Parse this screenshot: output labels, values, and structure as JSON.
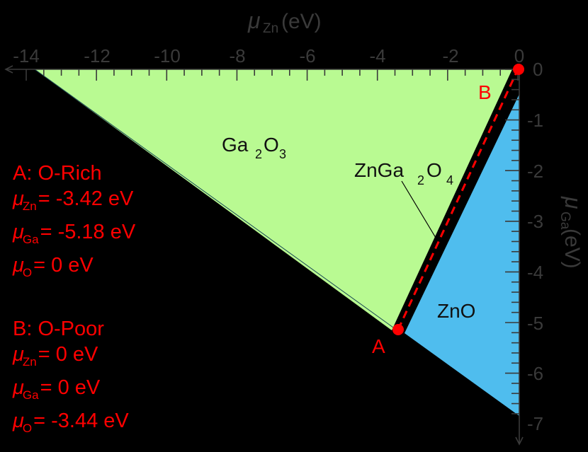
{
  "chart_data": {
    "type": "area",
    "title": "",
    "xlabel": "μ_Zn (eV)",
    "ylabel": "μ_Ga (eV)",
    "x_axis_position": "top",
    "y_axis_position": "right",
    "xlim": [
      -14,
      0
    ],
    "ylim": [
      -7,
      0
    ],
    "x_ticks": [
      -14,
      -12,
      -10,
      -8,
      -6,
      -4,
      -2,
      0
    ],
    "y_ticks": [
      0,
      -1,
      -2,
      -3,
      -4,
      -5,
      -6,
      -7
    ],
    "grid": false,
    "regions": [
      {
        "name": "Ga2O3",
        "color": "#b9fa92",
        "polygon": [
          [
            0,
            0
          ],
          [
            -13.9,
            0
          ],
          [
            -3.42,
            -5.18
          ],
          [
            -0.15,
            0
          ]
        ]
      },
      {
        "name": "ZnGa2O4",
        "color": "#000000",
        "polygon": [
          [
            -0.15,
            0
          ],
          [
            -3.42,
            -5.18
          ],
          [
            -3.25,
            -5.2
          ],
          [
            0,
            -0.5
          ]
        ]
      },
      {
        "name": "ZnO",
        "color": "#4fbdee",
        "polygon": [
          [
            0,
            -0.5
          ],
          [
            -3.25,
            -5.2
          ],
          [
            0,
            -6.85
          ]
        ]
      }
    ],
    "points": [
      {
        "label": "A",
        "x": -3.42,
        "y": -5.18,
        "color": "#ff0000"
      },
      {
        "label": "B",
        "x": 0,
        "y": 0,
        "color": "#ff0000"
      }
    ],
    "dashed_line": {
      "from": "A",
      "to": "B",
      "color": "#ff0000"
    },
    "annotations": [
      {
        "text": "Ga2O3",
        "x": -8.6,
        "y": -1.55
      },
      {
        "text": "ZnGa2O4",
        "x": -3.0,
        "y": -1.95,
        "leader_to": [
          -2.37,
          -3.3
        ]
      },
      {
        "text": "ZnO",
        "x": -2.0,
        "y": -4.8
      }
    ]
  },
  "axes": {
    "x_title_symbol": "μ",
    "x_title_sub": "Zn",
    "x_title_unit": "(eV)",
    "y_title_symbol": "μ",
    "y_title_sub": "Ga",
    "y_title_unit": "(eV)",
    "x_tick_labels": [
      "-14",
      "-12",
      "-10",
      "-8",
      "-6",
      "-4",
      "-2",
      "0"
    ],
    "y_tick_labels": [
      "0",
      "-1",
      "-2",
      "-3",
      "-4",
      "-5",
      "-6",
      "-7"
    ]
  },
  "labels": {
    "ga2o3_main": "Ga",
    "ga2o3_sub1": "2",
    "ga2o3_o": "O",
    "ga2o3_sub2": "3",
    "znga2o4_main": "ZnGa",
    "znga2o4_sub1": "2",
    "znga2o4_o": "O",
    "znga2o4_sub2": "4",
    "zno": "ZnO",
    "point_a": "A",
    "point_b": "B"
  },
  "legend": {
    "a": {
      "title": "A: O-Rich",
      "rows": [
        {
          "mu": "μ",
          "sub": "Zn",
          "value": "= -3.42 eV"
        },
        {
          "mu": "μ",
          "sub": "Ga",
          "value": "= -5.18 eV"
        },
        {
          "mu": "μ",
          "sub": "O",
          "value": "= 0 eV"
        }
      ]
    },
    "b": {
      "title": "B: O-Poor",
      "rows": [
        {
          "mu": "μ",
          "sub": "Zn",
          "value": "= 0 eV"
        },
        {
          "mu": "μ",
          "sub": "Ga",
          "value": "= 0 eV"
        },
        {
          "mu": "μ",
          "sub": "O",
          "value": "= -3.44 eV"
        }
      ]
    }
  }
}
